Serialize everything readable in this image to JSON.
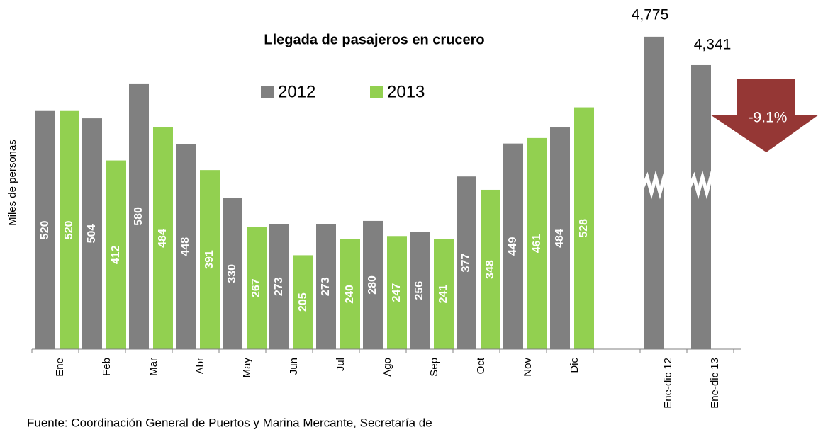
{
  "chart_data": {
    "type": "bar",
    "title": "Llegada de pasajeros en crucero",
    "y_label": "Miles de personas",
    "categories": [
      "Ene",
      "Feb",
      "Mar",
      "Abr",
      "May",
      "Jun",
      "Jul",
      "Ago",
      "Sep",
      "Oct",
      "Nov",
      "Dic"
    ],
    "series": [
      {
        "name": "2012",
        "color": "#808080",
        "values": [
          520,
          504,
          580,
          448,
          330,
          273,
          273,
          280,
          256,
          377,
          449,
          484
        ]
      },
      {
        "name": "2013",
        "color": "#92d050",
        "values": [
          520,
          412,
          484,
          391,
          267,
          205,
          240,
          247,
          241,
          348,
          461,
          528
        ]
      }
    ],
    "ylim": [
      0,
      750
    ],
    "totals": {
      "categories": [
        "Ene-dic 12",
        "Ene-dic 13"
      ],
      "values": [
        4775,
        4341
      ],
      "value_labels": [
        "4,775",
        "4,341"
      ],
      "color": "#808080",
      "axis": "y2"
    },
    "y2lim": [
      0,
      5250
    ],
    "annotation": "-9.1%",
    "source": "Fuente: Coordinación General de Puertos y Marina Mercante, Secretaría de"
  }
}
